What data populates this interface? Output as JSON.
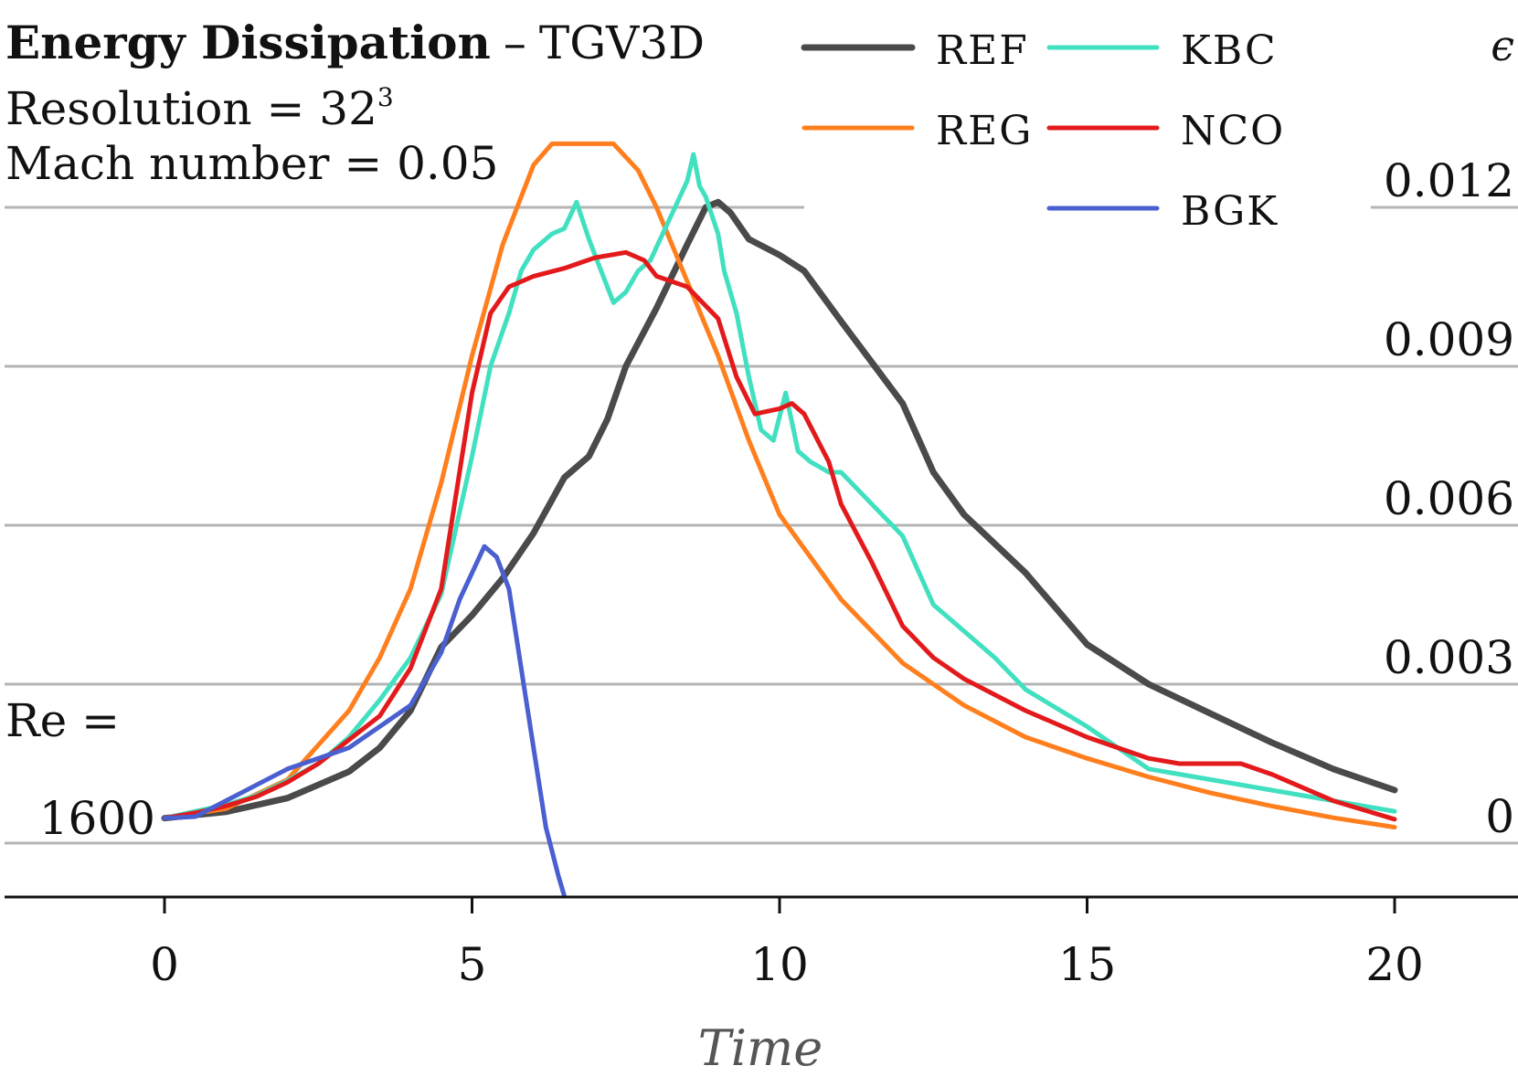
{
  "chart_data": {
    "type": "line",
    "title": "Energy Dissipation",
    "title_separator": "–",
    "subtitle": "TGV3D",
    "annotations": {
      "resolution_prefix": "Resolution = 32",
      "resolution_exp": "3",
      "mach": "Mach number = 0.05",
      "re_label": "Re =",
      "re_value": "1600"
    },
    "xlabel": "Time",
    "ylabel": "ϵ",
    "xlim": [
      -2.6,
      22.1
    ],
    "ylim": [
      -0.001,
      0.0132
    ],
    "xticks": [
      0,
      5,
      10,
      15,
      20
    ],
    "xtick_labels": [
      "0",
      "5",
      "10",
      "15",
      "20"
    ],
    "yticks": [
      0,
      0.003,
      0.006,
      0.009,
      0.012
    ],
    "ytick_labels": [
      "0",
      "0.003",
      "0.006",
      "0.009",
      "0.012"
    ],
    "y_axis_side": "right",
    "grid": "horizontal",
    "legend_placement": "top-right",
    "series": [
      {
        "name": "REF",
        "color": "#4a4a4a",
        "x": [
          0,
          1,
          2,
          3,
          3.5,
          4,
          4.5,
          5,
          5.5,
          6,
          6.5,
          6.9,
          7.2,
          7.5,
          8,
          8.5,
          8.8,
          9,
          9.2,
          9.5,
          10,
          10.4,
          11,
          12,
          12.5,
          13,
          14,
          15,
          16,
          17,
          18,
          19,
          20
        ],
        "y": [
          0.00047,
          0.00059,
          0.00085,
          0.00135,
          0.0018,
          0.0025,
          0.0037,
          0.0043,
          0.005,
          0.00585,
          0.0069,
          0.0073,
          0.008,
          0.009,
          0.0101,
          0.0113,
          0.012,
          0.0121,
          0.0119,
          0.0114,
          0.0111,
          0.0108,
          0.00985,
          0.0083,
          0.007,
          0.0062,
          0.0051,
          0.00375,
          0.003,
          0.00245,
          0.0019,
          0.0014,
          0.001
        ]
      },
      {
        "name": "REG",
        "color": "#ff7f1e",
        "x": [
          0,
          1,
          2,
          3,
          3.5,
          4,
          4.5,
          5,
          5.5,
          6,
          6.3,
          7.3,
          7.7,
          8,
          8.5,
          9,
          9.5,
          10,
          11,
          12,
          13,
          14,
          15,
          16,
          17,
          18,
          19,
          20
        ],
        "y": [
          0.00047,
          0.00065,
          0.0012,
          0.0025,
          0.0035,
          0.0048,
          0.0068,
          0.0092,
          0.0113,
          0.0128,
          0.0132,
          0.0132,
          0.0127,
          0.012,
          0.0106,
          0.0092,
          0.0076,
          0.0062,
          0.0046,
          0.0034,
          0.0026,
          0.002,
          0.0016,
          0.00125,
          0.00095,
          0.0007,
          0.00048,
          0.0003
        ]
      },
      {
        "name": "KBC",
        "color": "#40e0c0",
        "x": [
          0,
          0.5,
          1,
          1.5,
          2,
          2.5,
          3,
          3.5,
          4,
          4.5,
          5,
          5.3,
          5.6,
          5.8,
          6,
          6.3,
          6.5,
          6.7,
          6.9,
          7.1,
          7.3,
          7.5,
          7.7,
          7.9,
          8.1,
          8.3,
          8.5,
          8.6,
          8.7,
          8.8,
          9,
          9.1,
          9.3,
          9.5,
          9.7,
          9.9,
          10.1,
          10.3,
          10.5,
          10.8,
          11,
          11.5,
          12,
          12.5,
          13,
          13.5,
          14,
          14.5,
          15,
          15.5,
          16,
          17,
          18,
          19,
          20
        ],
        "y": [
          0.00047,
          0.0006,
          0.00072,
          0.0009,
          0.00118,
          0.0015,
          0.002,
          0.0027,
          0.0035,
          0.0047,
          0.0073,
          0.009,
          0.01,
          0.0108,
          0.0112,
          0.0115,
          0.0116,
          0.0121,
          0.0114,
          0.0108,
          0.0102,
          0.0104,
          0.0108,
          0.011,
          0.0115,
          0.012,
          0.0125,
          0.013,
          0.0124,
          0.0122,
          0.0115,
          0.0108,
          0.01,
          0.0088,
          0.0078,
          0.0076,
          0.0085,
          0.0074,
          0.0072,
          0.007,
          0.007,
          0.0064,
          0.0058,
          0.0045,
          0.004,
          0.0035,
          0.0029,
          0.00255,
          0.0022,
          0.0018,
          0.0014,
          0.0012,
          0.001,
          0.0008,
          0.0006
        ]
      },
      {
        "name": "NCO",
        "color": "#e31a1c",
        "x": [
          0,
          0.5,
          1,
          1.5,
          2,
          2.5,
          3,
          3.5,
          4,
          4.5,
          5,
          5.3,
          5.6,
          6,
          6.5,
          7,
          7.5,
          7.8,
          8,
          8.5,
          9,
          9.3,
          9.6,
          10,
          10.2,
          10.4,
          10.8,
          11,
          11.5,
          12,
          12.5,
          13,
          14,
          15,
          16,
          16.5,
          17,
          17.5,
          18,
          19,
          20
        ],
        "y": [
          0.00047,
          0.00057,
          0.0007,
          0.00088,
          0.00115,
          0.0015,
          0.00195,
          0.0024,
          0.0033,
          0.0048,
          0.0085,
          0.01,
          0.0105,
          0.0107,
          0.01085,
          0.01105,
          0.01115,
          0.011,
          0.0107,
          0.0105,
          0.0099,
          0.0088,
          0.0081,
          0.0082,
          0.0083,
          0.0081,
          0.0072,
          0.0064,
          0.0053,
          0.0041,
          0.0035,
          0.0031,
          0.0025,
          0.002,
          0.0016,
          0.0015,
          0.0015,
          0.0015,
          0.0013,
          0.0008,
          0.00045
        ]
      },
      {
        "name": "BGK",
        "color": "#4a5fd0",
        "x": [
          0,
          0.5,
          1,
          1.5,
          2,
          2.5,
          3,
          3.5,
          4,
          4.2,
          4.5,
          4.8,
          5,
          5.2,
          5.4,
          5.6,
          5.8,
          6,
          6.2,
          6.4,
          6.5
        ],
        "y": [
          0.00047,
          0.0005,
          0.0008,
          0.0011,
          0.0014,
          0.0016,
          0.0018,
          0.0022,
          0.0026,
          0.003,
          0.0036,
          0.0046,
          0.0051,
          0.0056,
          0.0054,
          0.0048,
          0.0033,
          0.0018,
          0.0003,
          -0.0006,
          -0.001
        ]
      }
    ]
  }
}
